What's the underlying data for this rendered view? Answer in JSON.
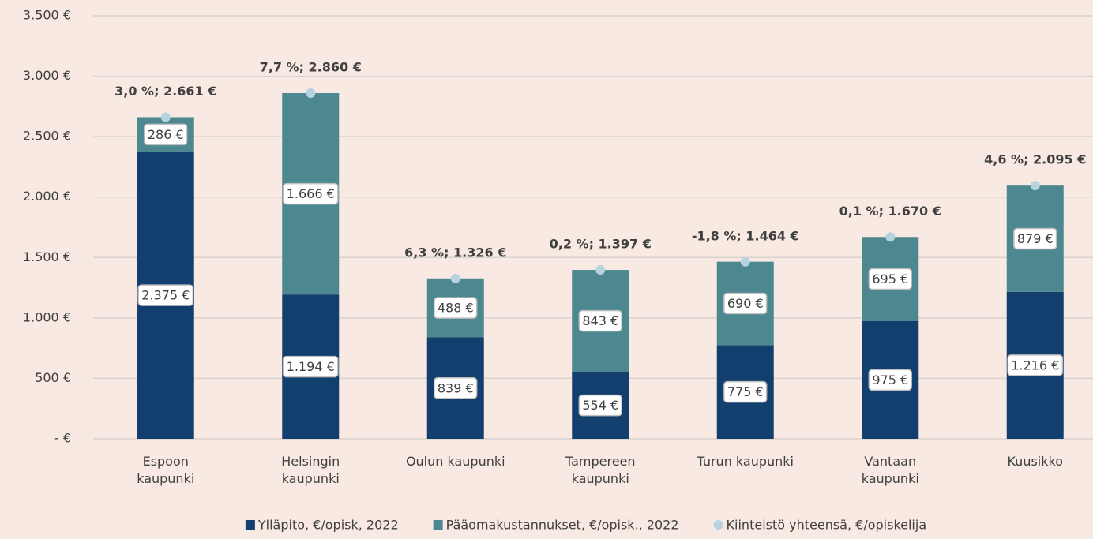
{
  "chart_data": {
    "type": "bar",
    "stacked": true,
    "categories": [
      "Espoon kaupunki",
      "Helsingin kaupunki",
      "Oulun kaupunki",
      "Tampereen kaupunki",
      "Turun kaupunki",
      "Vantaan kaupunki",
      "Kuusikko"
    ],
    "series": [
      {
        "name": "Ylläpito, €/opisk, 2022",
        "color": "#133f6e",
        "values": [
          2375,
          1194,
          839,
          554,
          775,
          975,
          1216
        ],
        "value_labels": [
          "2.375 €",
          "1.194 €",
          "839 €",
          "554 €",
          "775 €",
          "975 €",
          "1.216 €"
        ]
      },
      {
        "name": "Pääomakustannukset, €/opisk., 2022",
        "color": "#4d8890",
        "values": [
          286,
          1666,
          488,
          843,
          690,
          695,
          879
        ],
        "value_labels": [
          "286 €",
          "1.666 €",
          "488 €",
          "843 €",
          "690 €",
          "695 €",
          "879 €"
        ]
      },
      {
        "name": "Kiinteistö yhteensä,  €/opiskelija",
        "color": "#b7d3df",
        "type": "scatter",
        "values": [
          2661,
          2860,
          1326,
          1397,
          1464,
          1670,
          2095
        ],
        "value_labels": [
          "3,0 %;  2.661 €",
          "7,7 %;  2.860 €",
          "6,3 %;  1.326 €",
          "0,2 %;  1.397 €",
          "-1,8 %;  1.464 €",
          "0,1 %;  1.670 €",
          "4,6 %;  2.095 €"
        ]
      }
    ],
    "ylim": [
      0,
      3500
    ],
    "yticks": [
      {
        "value": 0,
        "label": "-  €"
      },
      {
        "value": 500,
        "label": "500 €"
      },
      {
        "value": 1000,
        "label": "1.000 €"
      },
      {
        "value": 1500,
        "label": "1.500 €"
      },
      {
        "value": 2000,
        "label": "2.000 €"
      },
      {
        "value": 2500,
        "label": "2.500 €"
      },
      {
        "value": 3000,
        "label": "3.000 €"
      },
      {
        "value": 3500,
        "label": "3.500 €"
      }
    ],
    "grid": true,
    "legend": "bottom"
  }
}
